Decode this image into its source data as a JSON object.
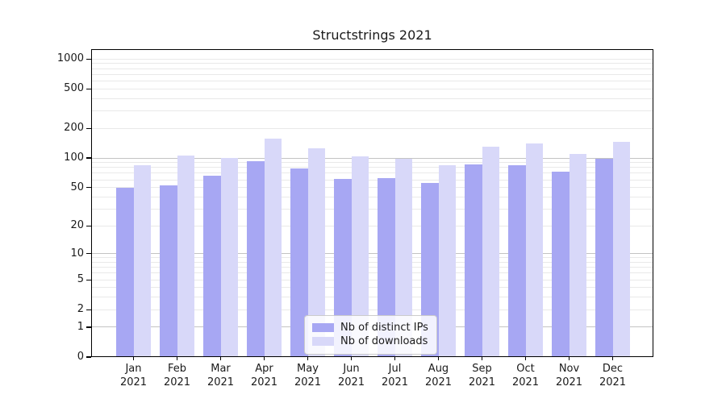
{
  "chart_data": {
    "type": "bar",
    "title": "Structstrings 2021",
    "categories": [
      "Jan",
      "Feb",
      "Mar",
      "Apr",
      "May",
      "Jun",
      "Jul",
      "Aug",
      "Sep",
      "Oct",
      "Nov",
      "Dec"
    ],
    "category_year": "2021",
    "series": [
      {
        "name": "Nb of distinct IPs",
        "color": "#a7a7f3",
        "values": [
          50,
          53,
          66,
          93,
          78,
          61,
          62,
          56,
          86,
          84,
          73,
          99
        ]
      },
      {
        "name": "Nb of downloads",
        "color": "#d8d8f9",
        "values": [
          85,
          105,
          100,
          158,
          125,
          104,
          99,
          85,
          131,
          141,
          110,
          147
        ]
      }
    ],
    "y_axis": {
      "scale": "log1p",
      "ticks": [
        0,
        1,
        2,
        5,
        10,
        20,
        50,
        100,
        200,
        500,
        1000
      ],
      "gridlines_major": [
        1,
        10,
        100
      ],
      "gridlines_minor": [
        2,
        3,
        4,
        5,
        6,
        7,
        8,
        9,
        20,
        30,
        40,
        50,
        60,
        70,
        80,
        90,
        200,
        300,
        400,
        500,
        600,
        700,
        800,
        900,
        1000
      ],
      "range": [
        0,
        1260
      ]
    },
    "legend": {
      "position": "bottom-center"
    },
    "colors": {
      "grid_major": "#c3c3c3",
      "grid_minor": "#e9e9e9",
      "axis": "#000000",
      "text": "#1a1a1a",
      "background": "#ffffff"
    }
  }
}
